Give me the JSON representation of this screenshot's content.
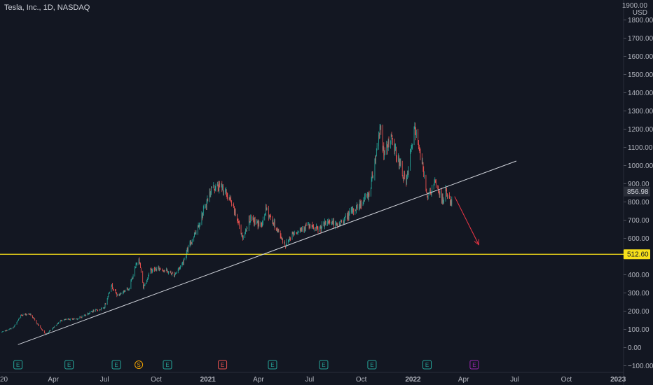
{
  "header": {
    "symbol_title": "Tesla, Inc., 1D, NASDAQ"
  },
  "price_axis": {
    "currency": "USD"
  },
  "colors": {
    "background": "#131722",
    "up_candle": "#26a69a",
    "down_candle": "#ef5350",
    "trendline": "#d1d4dc",
    "support_line": "#f7e11a",
    "arrow": "#f23645",
    "earnings_badge": "#26a69a",
    "earnings_badge_red": "#ef5350",
    "split_badge": "#f7a600",
    "upcoming_badge": "#9c27b0"
  },
  "chart_data": {
    "type": "candlestick",
    "title": "Tesla, Inc., 1D, NASDAQ",
    "y_unit": "USD",
    "ylim": [
      -100,
      1900
    ],
    "xlim": [
      "2019-12-28",
      "2023-01-02"
    ],
    "y_ticks": [
      1800,
      1700,
      1600,
      1500,
      1400,
      1300,
      1200,
      1100,
      1000,
      900,
      800,
      700,
      600,
      500,
      400,
      300,
      200,
      100,
      0,
      -100
    ],
    "y_tick_labels": [
      "1800.00",
      "1700.00",
      "1600.00",
      "1500.00",
      "1400.00",
      "1300.00",
      "1200.00",
      "1100.00",
      "1000.00",
      "900.00",
      "800.00",
      "700.00",
      "600.00",
      "500.00",
      "400.00",
      "300.00",
      "200.00",
      "100.00",
      "0.00",
      "−100.00"
    ],
    "top_partial_label": "1900.00",
    "x_ticks": [
      {
        "date": "2020-01-01",
        "label": "20"
      },
      {
        "date": "2020-04-01",
        "label": "Apr"
      },
      {
        "date": "2020-07-01",
        "label": "Jul"
      },
      {
        "date": "2020-10-01",
        "label": "Oct"
      },
      {
        "date": "2021-01-01",
        "label": "2021",
        "bold": true
      },
      {
        "date": "2021-04-01",
        "label": "Apr"
      },
      {
        "date": "2021-07-01",
        "label": "Jul"
      },
      {
        "date": "2021-10-01",
        "label": "Oct"
      },
      {
        "date": "2022-01-01",
        "label": "2022",
        "bold": true
      },
      {
        "date": "2022-04-01",
        "label": "Apr"
      },
      {
        "date": "2022-07-01",
        "label": "Jul"
      },
      {
        "date": "2022-10-01",
        "label": "Oct"
      },
      {
        "date": "2023-01-01",
        "label": "2023",
        "bold": true
      }
    ],
    "grid": false,
    "price_path": [
      [
        "2019-12-31",
        84
      ],
      [
        "2020-01-21",
        110
      ],
      [
        "2020-02-04",
        180
      ],
      [
        "2020-02-19",
        185
      ],
      [
        "2020-03-18",
        72
      ],
      [
        "2020-04-15",
        150
      ],
      [
        "2020-05-15",
        160
      ],
      [
        "2020-06-10",
        200
      ],
      [
        "2020-06-30",
        215
      ],
      [
        "2020-07-13",
        345
      ],
      [
        "2020-07-24",
        285
      ],
      [
        "2020-08-14",
        330
      ],
      [
        "2020-08-31",
        498
      ],
      [
        "2020-09-08",
        330
      ],
      [
        "2020-09-21",
        425
      ],
      [
        "2020-10-09",
        435
      ],
      [
        "2020-11-02",
        400
      ],
      [
        "2020-11-16",
        460
      ],
      [
        "2020-11-30",
        567
      ],
      [
        "2020-12-18",
        695
      ],
      [
        "2021-01-08",
        880
      ],
      [
        "2021-01-26",
        883
      ],
      [
        "2021-02-10",
        805
      ],
      [
        "2021-02-23",
        698
      ],
      [
        "2021-03-05",
        597
      ],
      [
        "2021-03-15",
        707
      ],
      [
        "2021-04-07",
        670
      ],
      [
        "2021-04-14",
        762
      ],
      [
        "2021-05-19",
        563
      ],
      [
        "2021-05-31",
        625
      ],
      [
        "2021-06-25",
        671
      ],
      [
        "2021-07-16",
        644
      ],
      [
        "2021-08-06",
        700
      ],
      [
        "2021-08-18",
        665
      ],
      [
        "2021-09-24",
        774
      ],
      [
        "2021-10-15",
        843
      ],
      [
        "2021-10-25",
        1024
      ],
      [
        "2021-11-04",
        1229
      ],
      [
        "2021-11-10",
        1050
      ],
      [
        "2021-11-22",
        1157
      ],
      [
        "2021-12-20",
        899
      ],
      [
        "2022-01-03",
        1199
      ],
      [
        "2022-01-12",
        1106
      ],
      [
        "2022-01-27",
        829
      ],
      [
        "2022-02-10",
        904
      ],
      [
        "2022-02-23",
        800
      ],
      [
        "2022-03-01",
        865
      ],
      [
        "2022-03-07",
        805
      ],
      [
        "2022-03-11",
        795
      ]
    ],
    "price_range_shown": [
      60,
      1245
    ],
    "last_price": {
      "value": 856.98,
      "label": "856.98"
    },
    "horizontal_level": {
      "value": 512.6,
      "label": "512.60"
    },
    "trendline": {
      "from": [
        "2020-01-29",
        16
      ],
      "to": [
        "2022-07-04",
        1025
      ]
    },
    "projection_arrow": {
      "from": [
        "2022-03-16",
        830
      ],
      "to": [
        "2022-04-28",
        565
      ]
    },
    "events": [
      {
        "date": "2020-01-29",
        "type": "earnings",
        "label": "E"
      },
      {
        "date": "2020-04-29",
        "type": "earnings",
        "label": "E"
      },
      {
        "date": "2020-07-22",
        "type": "earnings",
        "label": "E"
      },
      {
        "date": "2020-08-31",
        "type": "split",
        "label": "S"
      },
      {
        "date": "2020-10-21",
        "type": "earnings",
        "label": "E"
      },
      {
        "date": "2021-01-27",
        "type": "earnings-miss",
        "label": "E"
      },
      {
        "date": "2021-04-26",
        "type": "earnings",
        "label": "E"
      },
      {
        "date": "2021-07-26",
        "type": "earnings",
        "label": "E"
      },
      {
        "date": "2021-10-20",
        "type": "earnings",
        "label": "E"
      },
      {
        "date": "2022-01-26",
        "type": "earnings",
        "label": "E"
      },
      {
        "date": "2022-04-20",
        "type": "earnings-upcoming",
        "label": "E"
      }
    ]
  }
}
